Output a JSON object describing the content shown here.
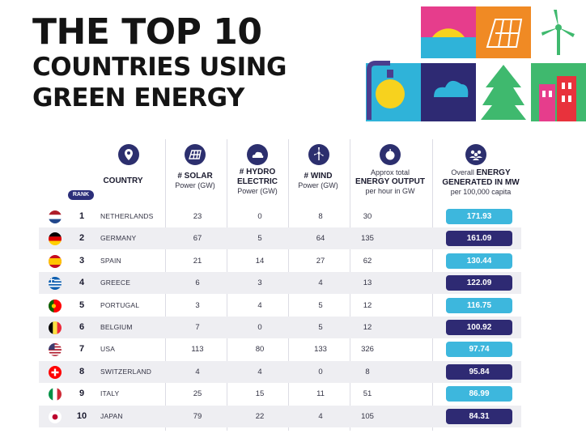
{
  "title": {
    "line1": "THE TOP 10",
    "line2": "COUNTRIES USING",
    "line3": "GREEN ENERGY"
  },
  "headers": {
    "rank": "RANK",
    "country": "COUNTRY",
    "solar": {
      "bold": "# SOLAR",
      "sub": "Power (GW)"
    },
    "hydro": {
      "bold1": "# HYDRO",
      "bold2": "ELECTRIC",
      "sub": "Power (GW)"
    },
    "wind": {
      "bold": "# WIND",
      "sub": "Power (GW)"
    },
    "output": {
      "pre": "Approx total",
      "bold": "ENERGY OUTPUT",
      "sub": "per hour in GW"
    },
    "energy": {
      "pre": "Overall",
      "bold1": "ENERGY",
      "bold2": "GENERATED IN MW",
      "sub": "per 100,000 capita"
    }
  },
  "icons": [
    "location-pin-icon",
    "solar-panel-icon",
    "cloud-icon",
    "wind-turbine-icon",
    "apple-icon",
    "people-icon"
  ],
  "colors": {
    "pill_light": "#3db7dd",
    "pill_dark": "#2e2a73",
    "row_shade": "#eeeef2"
  },
  "chart_data": {
    "type": "table",
    "title": "THE TOP 10 COUNTRIES USING GREEN ENERGY",
    "columns": [
      "RANK",
      "COUNTRY",
      "# SOLAR Power (GW)",
      "# HYDRO ELECTRIC Power (GW)",
      "# WIND Power (GW)",
      "Approx total ENERGY OUTPUT per hour in GW",
      "Overall ENERGY GENERATED IN MW per 100,000 capita"
    ],
    "rows": [
      {
        "rank": "1",
        "country": "NETHERLANDS",
        "flag": "netherlands-flag-icon",
        "solar": "23",
        "hydro": "0",
        "wind": "8",
        "output": "30",
        "energy": "171.93"
      },
      {
        "rank": "2",
        "country": "GERMANY",
        "flag": "germany-flag-icon",
        "solar": "67",
        "hydro": "5",
        "wind": "64",
        "output": "135",
        "energy": "161.09"
      },
      {
        "rank": "3",
        "country": "SPAIN",
        "flag": "spain-flag-icon",
        "solar": "21",
        "hydro": "14",
        "wind": "27",
        "output": "62",
        "energy": "130.44"
      },
      {
        "rank": "4",
        "country": "GREECE",
        "flag": "greece-flag-icon",
        "solar": "6",
        "hydro": "3",
        "wind": "4",
        "output": "13",
        "energy": "122.09"
      },
      {
        "rank": "5",
        "country": "PORTUGAL",
        "flag": "portugal-flag-icon",
        "solar": "3",
        "hydro": "4",
        "wind": "5",
        "output": "12",
        "energy": "116.75"
      },
      {
        "rank": "6",
        "country": "BELGIUM",
        "flag": "belgium-flag-icon",
        "solar": "7",
        "hydro": "0",
        "wind": "5",
        "output": "12",
        "energy": "100.92"
      },
      {
        "rank": "7",
        "country": "USA",
        "flag": "usa-flag-icon",
        "solar": "113",
        "hydro": "80",
        "wind": "133",
        "output": "326",
        "energy": "97.74"
      },
      {
        "rank": "8",
        "country": "SWITZERLAND",
        "flag": "switzerland-flag-icon",
        "solar": "4",
        "hydro": "4",
        "wind": "0",
        "output": "8",
        "energy": "95.84"
      },
      {
        "rank": "9",
        "country": "ITALY",
        "flag": "italy-flag-icon",
        "solar": "25",
        "hydro": "15",
        "wind": "11",
        "output": "51",
        "energy": "86.99"
      },
      {
        "rank": "10",
        "country": "JAPAN",
        "flag": "japan-flag-icon",
        "solar": "79",
        "hydro": "22",
        "wind": "4",
        "output": "105",
        "energy": "84.31"
      }
    ]
  }
}
